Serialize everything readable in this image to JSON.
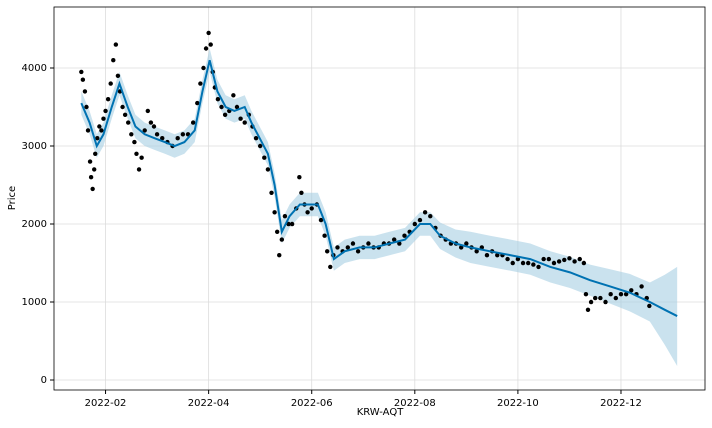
{
  "chart_data": {
    "type": "forecast",
    "xlabel": "KRW-AQT",
    "ylabel": "Price",
    "xlim": [
      0,
      12.63
    ],
    "ylim": [
      -128,
      4782
    ],
    "xticks": [
      {
        "value": 1,
        "label": "2022-02"
      },
      {
        "value": 3,
        "label": "2022-04"
      },
      {
        "value": 5,
        "label": "2022-06"
      },
      {
        "value": 7,
        "label": "2022-08"
      },
      {
        "value": 9,
        "label": "2022-10"
      },
      {
        "value": 11,
        "label": "2022-12"
      }
    ],
    "yticks": [
      0,
      1000,
      2000,
      3000,
      4000
    ],
    "grid": true,
    "observed": {
      "color": "#000000",
      "x": [
        0.53,
        0.56,
        0.6,
        0.63,
        0.66,
        0.7,
        0.72,
        0.75,
        0.78,
        0.8,
        0.84,
        0.88,
        0.92,
        0.96,
        1.0,
        1.05,
        1.1,
        1.15,
        1.2,
        1.24,
        1.28,
        1.33,
        1.38,
        1.44,
        1.5,
        1.56,
        1.6,
        1.65,
        1.7,
        1.76,
        1.82,
        1.88,
        1.94,
        2.0,
        2.1,
        2.2,
        2.3,
        2.4,
        2.5,
        2.6,
        2.7,
        2.78,
        2.84,
        2.9,
        2.95,
        3.0,
        3.04,
        3.08,
        3.12,
        3.18,
        3.25,
        3.32,
        3.4,
        3.48,
        3.55,
        3.62,
        3.7,
        3.78,
        3.85,
        3.92,
        4.0,
        4.08,
        4.15,
        4.22,
        4.28,
        4.33,
        4.37,
        4.42,
        4.48,
        4.55,
        4.62,
        4.7,
        4.76,
        4.8,
        4.86,
        4.92,
        5.0,
        5.1,
        5.18,
        5.25,
        5.3,
        5.36,
        5.42,
        5.5,
        5.6,
        5.7,
        5.8,
        5.9,
        6.0,
        6.1,
        6.2,
        6.3,
        6.4,
        6.5,
        6.6,
        6.7,
        6.8,
        6.9,
        7.0,
        7.1,
        7.2,
        7.3,
        7.4,
        7.5,
        7.6,
        7.7,
        7.8,
        7.9,
        8.0,
        8.1,
        8.2,
        8.3,
        8.4,
        8.5,
        8.6,
        8.7,
        8.8,
        8.9,
        9.0,
        9.1,
        9.2,
        9.3,
        9.4,
        9.5,
        9.6,
        9.7,
        9.8,
        9.9,
        10.0,
        10.1,
        10.2,
        10.28,
        10.32,
        10.36,
        10.42,
        10.5,
        10.6,
        10.7,
        10.8,
        10.9,
        11.0,
        11.1,
        11.2,
        11.3,
        11.4,
        11.5,
        11.55
      ],
      "values": [
        3950,
        3850,
        3700,
        3500,
        3200,
        2800,
        2600,
        2450,
        2700,
        2900,
        3100,
        3250,
        3200,
        3350,
        3450,
        3600,
        3800,
        4100,
        4300,
        3900,
        3700,
        3500,
        3400,
        3300,
        3150,
        3050,
        2900,
        2700,
        2850,
        3200,
        3450,
        3300,
        3250,
        3150,
        3100,
        3050,
        3000,
        3100,
        3150,
        3150,
        3300,
        3550,
        3800,
        4000,
        4250,
        4450,
        4300,
        3950,
        3750,
        3600,
        3500,
        3400,
        3450,
        3650,
        3500,
        3350,
        3300,
        3400,
        3250,
        3100,
        3000,
        2850,
        2700,
        2400,
        2150,
        1900,
        1600,
        1800,
        2100,
        2000,
        2000,
        2200,
        2600,
        2400,
        2250,
        2150,
        2200,
        2250,
        2050,
        1850,
        1650,
        1450,
        1600,
        1700,
        1650,
        1700,
        1750,
        1650,
        1700,
        1750,
        1700,
        1700,
        1750,
        1750,
        1800,
        1750,
        1850,
        1900,
        2000,
        2050,
        2150,
        2100,
        1950,
        1850,
        1800,
        1750,
        1750,
        1700,
        1750,
        1700,
        1650,
        1700,
        1600,
        1650,
        1600,
        1600,
        1550,
        1500,
        1550,
        1500,
        1500,
        1480,
        1450,
        1550,
        1550,
        1500,
        1520,
        1540,
        1560,
        1520,
        1550,
        1500,
        1100,
        900,
        1000,
        1050,
        1050,
        1000,
        1100,
        1050,
        1100,
        1100,
        1150,
        1100,
        1200,
        1050,
        950
      ]
    },
    "forecast": {
      "color": "#0072b2",
      "band_color": "#a6cee3",
      "x": [
        0.53,
        0.69,
        0.83,
        0.96,
        1.12,
        1.27,
        1.43,
        1.58,
        1.76,
        1.95,
        2.15,
        2.34,
        2.53,
        2.73,
        2.88,
        3.02,
        3.17,
        3.33,
        3.5,
        3.7,
        3.83,
        3.99,
        4.15,
        4.28,
        4.42,
        4.57,
        4.77,
        4.96,
        5.12,
        5.27,
        5.43,
        5.64,
        5.93,
        6.22,
        6.51,
        6.81,
        7.1,
        7.3,
        7.49,
        7.79,
        8.08,
        8.46,
        8.86,
        9.24,
        9.63,
        10.01,
        10.4,
        10.79,
        11.17,
        11.56,
        11.85,
        12.09
      ],
      "values": [
        3550,
        3300,
        3000,
        3150,
        3500,
        3800,
        3500,
        3250,
        3150,
        3100,
        3050,
        3000,
        3050,
        3200,
        3700,
        4100,
        3700,
        3500,
        3450,
        3500,
        3300,
        3100,
        2900,
        2500,
        1900,
        2100,
        2250,
        2250,
        2250,
        2000,
        1550,
        1650,
        1700,
        1700,
        1750,
        1800,
        2000,
        2000,
        1850,
        1750,
        1700,
        1650,
        1600,
        1550,
        1450,
        1380,
        1280,
        1200,
        1120,
        1000,
        900,
        820
      ],
      "lower": [
        3400,
        3150,
        2850,
        3000,
        3350,
        3650,
        3350,
        3100,
        3000,
        2950,
        2900,
        2850,
        2900,
        3050,
        3550,
        3950,
        3550,
        3350,
        3300,
        3350,
        3150,
        2950,
        2750,
        2350,
        1750,
        1950,
        2100,
        2100,
        2100,
        1850,
        1400,
        1500,
        1550,
        1550,
        1600,
        1650,
        1850,
        1850,
        1680,
        1570,
        1500,
        1450,
        1400,
        1350,
        1250,
        1180,
        1080,
        980,
        880,
        750,
        450,
        180
      ],
      "upper": [
        3700,
        3450,
        3150,
        3300,
        3650,
        3950,
        3650,
        3400,
        3300,
        3250,
        3200,
        3150,
        3200,
        3350,
        3850,
        4250,
        3850,
        3650,
        3600,
        3650,
        3450,
        3250,
        3050,
        2650,
        2050,
        2250,
        2400,
        2400,
        2400,
        2150,
        1700,
        1800,
        1850,
        1850,
        1900,
        1950,
        2150,
        2150,
        2020,
        1930,
        1900,
        1850,
        1800,
        1750,
        1650,
        1580,
        1480,
        1420,
        1360,
        1250,
        1350,
        1450
      ]
    }
  }
}
